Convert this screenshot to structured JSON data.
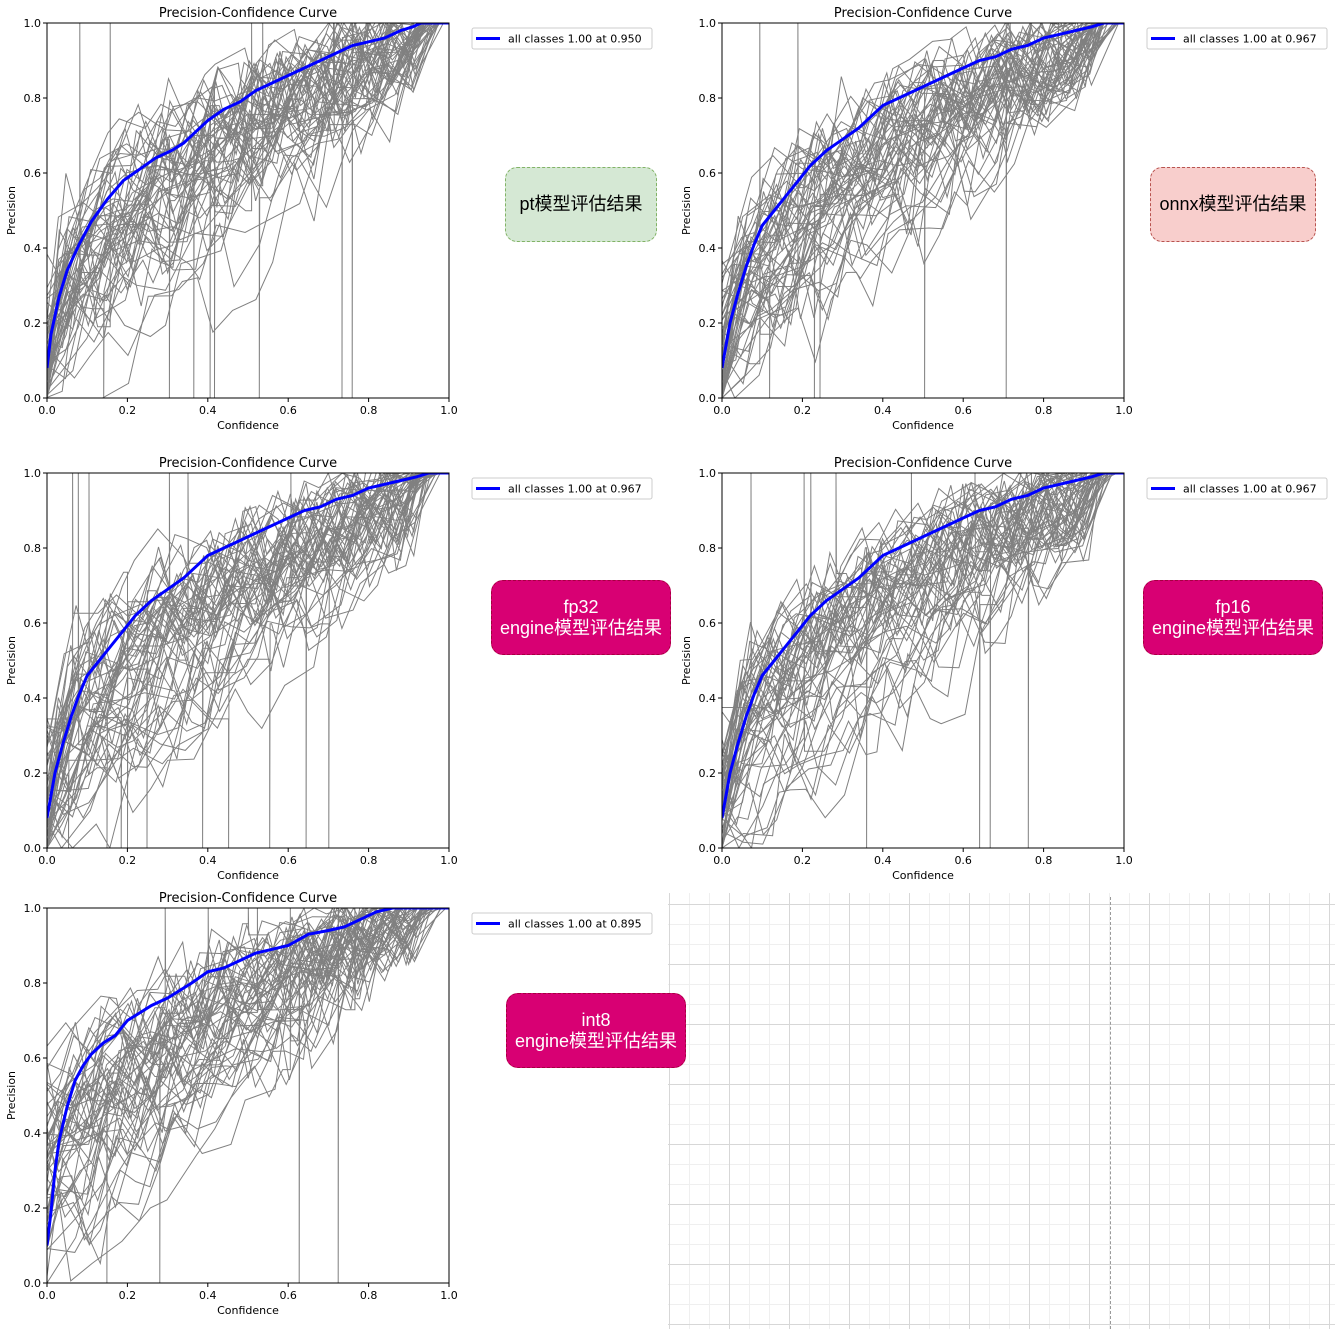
{
  "chart_data": [
    {
      "type": "line",
      "title": "Precision-Confidence Curve",
      "xlabel": "Confidence",
      "ylabel": "Precision",
      "xlim": [
        0,
        1
      ],
      "ylim": [
        0,
        1
      ],
      "xticks": [
        "0.0",
        "0.2",
        "0.4",
        "0.6",
        "0.8",
        "1.0"
      ],
      "yticks": [
        "0.0",
        "0.2",
        "0.4",
        "0.6",
        "0.8",
        "1.0"
      ],
      "grid": false,
      "legend_position": "outside-right-top",
      "legend": "all classes 1.00 at 0.950",
      "series": [
        {
          "name": "all classes 1.00 at 0.950",
          "color": "#0000ff",
          "x": [
            0.0,
            0.01,
            0.03,
            0.05,
            0.08,
            0.11,
            0.15,
            0.19,
            0.23,
            0.27,
            0.31,
            0.34,
            0.37,
            0.4,
            0.44,
            0.48,
            0.52,
            0.56,
            0.6,
            0.64,
            0.68,
            0.72,
            0.76,
            0.8,
            0.84,
            0.88,
            0.91,
            0.93,
            0.95,
            1.0
          ],
          "y": [
            0.08,
            0.17,
            0.27,
            0.34,
            0.41,
            0.47,
            0.53,
            0.58,
            0.61,
            0.64,
            0.66,
            0.68,
            0.71,
            0.74,
            0.77,
            0.79,
            0.82,
            0.84,
            0.86,
            0.88,
            0.9,
            0.92,
            0.94,
            0.95,
            0.96,
            0.98,
            0.99,
            1.0,
            1.0,
            1.0
          ]
        }
      ]
    },
    {
      "type": "line",
      "title": "Precision-Confidence Curve",
      "xlabel": "Confidence",
      "ylabel": "Precision",
      "xlim": [
        0,
        1
      ],
      "ylim": [
        0,
        1
      ],
      "xticks": [
        "0.0",
        "0.2",
        "0.4",
        "0.6",
        "0.8",
        "1.0"
      ],
      "yticks": [
        "0.0",
        "0.2",
        "0.4",
        "0.6",
        "0.8",
        "1.0"
      ],
      "grid": false,
      "legend_position": "outside-right-top",
      "legend": "all classes 1.00 at 0.967",
      "series": [
        {
          "name": "all classes 1.00 at 0.967",
          "color": "#0000ff",
          "x": [
            0.0,
            0.01,
            0.02,
            0.04,
            0.06,
            0.08,
            0.1,
            0.13,
            0.16,
            0.19,
            0.22,
            0.26,
            0.3,
            0.34,
            0.37,
            0.4,
            0.44,
            0.48,
            0.52,
            0.56,
            0.6,
            0.64,
            0.68,
            0.72,
            0.76,
            0.8,
            0.84,
            0.88,
            0.92,
            0.95,
            0.967,
            1.0
          ],
          "y": [
            0.08,
            0.14,
            0.2,
            0.28,
            0.35,
            0.41,
            0.46,
            0.5,
            0.54,
            0.58,
            0.62,
            0.66,
            0.69,
            0.72,
            0.75,
            0.78,
            0.8,
            0.82,
            0.84,
            0.86,
            0.88,
            0.9,
            0.91,
            0.93,
            0.94,
            0.96,
            0.97,
            0.98,
            0.99,
            1.0,
            1.0,
            1.0
          ]
        }
      ]
    },
    {
      "type": "line",
      "title": "Precision-Confidence Curve",
      "xlabel": "Confidence",
      "ylabel": "Precision",
      "xlim": [
        0,
        1
      ],
      "ylim": [
        0,
        1
      ],
      "xticks": [
        "0.0",
        "0.2",
        "0.4",
        "0.6",
        "0.8",
        "1.0"
      ],
      "yticks": [
        "0.0",
        "0.2",
        "0.4",
        "0.6",
        "0.8",
        "1.0"
      ],
      "grid": false,
      "legend_position": "outside-right-top",
      "legend": "all classes 1.00 at 0.967",
      "series": [
        {
          "name": "all classes 1.00 at 0.967",
          "color": "#0000ff",
          "x": [
            0.0,
            0.01,
            0.02,
            0.04,
            0.06,
            0.08,
            0.1,
            0.13,
            0.16,
            0.19,
            0.22,
            0.26,
            0.3,
            0.34,
            0.37,
            0.4,
            0.44,
            0.48,
            0.52,
            0.56,
            0.6,
            0.64,
            0.68,
            0.72,
            0.76,
            0.8,
            0.84,
            0.88,
            0.92,
            0.95,
            0.967,
            1.0
          ],
          "y": [
            0.08,
            0.14,
            0.2,
            0.28,
            0.35,
            0.41,
            0.46,
            0.5,
            0.54,
            0.58,
            0.62,
            0.66,
            0.69,
            0.72,
            0.75,
            0.78,
            0.8,
            0.82,
            0.84,
            0.86,
            0.88,
            0.9,
            0.91,
            0.93,
            0.94,
            0.96,
            0.97,
            0.98,
            0.99,
            1.0,
            1.0,
            1.0
          ]
        }
      ]
    },
    {
      "type": "line",
      "title": "Precision-Confidence Curve",
      "xlabel": "Confidence",
      "ylabel": "Precision",
      "xlim": [
        0,
        1
      ],
      "ylim": [
        0,
        1
      ],
      "xticks": [
        "0.0",
        "0.2",
        "0.4",
        "0.6",
        "0.8",
        "1.0"
      ],
      "yticks": [
        "0.0",
        "0.2",
        "0.4",
        "0.6",
        "0.8",
        "1.0"
      ],
      "grid": false,
      "legend_position": "outside-right-top",
      "legend": "all classes 1.00 at 0.967",
      "series": [
        {
          "name": "all classes 1.00 at 0.967",
          "color": "#0000ff",
          "x": [
            0.0,
            0.01,
            0.02,
            0.04,
            0.06,
            0.08,
            0.1,
            0.13,
            0.16,
            0.19,
            0.22,
            0.26,
            0.3,
            0.34,
            0.37,
            0.4,
            0.44,
            0.48,
            0.52,
            0.56,
            0.6,
            0.64,
            0.68,
            0.72,
            0.76,
            0.8,
            0.84,
            0.88,
            0.92,
            0.95,
            0.967,
            1.0
          ],
          "y": [
            0.08,
            0.14,
            0.2,
            0.28,
            0.35,
            0.41,
            0.46,
            0.5,
            0.54,
            0.58,
            0.62,
            0.66,
            0.69,
            0.72,
            0.75,
            0.78,
            0.8,
            0.82,
            0.84,
            0.86,
            0.88,
            0.9,
            0.91,
            0.93,
            0.94,
            0.96,
            0.97,
            0.98,
            0.99,
            1.0,
            1.0,
            1.0
          ]
        }
      ]
    },
    {
      "type": "line",
      "title": "Precision-Confidence Curve",
      "xlabel": "Confidence",
      "ylabel": "Precision",
      "xlim": [
        0,
        1
      ],
      "ylim": [
        0,
        1
      ],
      "xticks": [
        "0.0",
        "0.2",
        "0.4",
        "0.6",
        "0.8",
        "1.0"
      ],
      "yticks": [
        "0.0",
        "0.2",
        "0.4",
        "0.6",
        "0.8",
        "1.0"
      ],
      "grid": false,
      "legend_position": "outside-right-top",
      "legend": "all classes 1.00 at 0.895",
      "series": [
        {
          "name": "all classes 1.00 at 0.895",
          "color": "#0000ff",
          "x": [
            0.0,
            0.01,
            0.02,
            0.03,
            0.05,
            0.07,
            0.09,
            0.11,
            0.14,
            0.17,
            0.2,
            0.23,
            0.26,
            0.3,
            0.33,
            0.36,
            0.4,
            0.44,
            0.48,
            0.52,
            0.56,
            0.6,
            0.65,
            0.7,
            0.74,
            0.78,
            0.82,
            0.86,
            0.895,
            1.0
          ],
          "y": [
            0.1,
            0.19,
            0.3,
            0.38,
            0.47,
            0.54,
            0.58,
            0.61,
            0.64,
            0.66,
            0.7,
            0.72,
            0.74,
            0.76,
            0.78,
            0.8,
            0.83,
            0.84,
            0.86,
            0.88,
            0.89,
            0.9,
            0.93,
            0.94,
            0.95,
            0.97,
            0.99,
            1.0,
            1.0,
            1.0
          ]
        }
      ]
    }
  ],
  "badges": [
    {
      "text": "pt模型评估结果",
      "bg": "#d5e8d4",
      "border": "#82b366",
      "color": "#000000"
    },
    {
      "text": "onnx模型评估结果",
      "bg": "#f8cecc",
      "border": "#b85450",
      "color": "#000000"
    },
    {
      "text": "fp32\nengine模型评估结果",
      "bg": "#d80073",
      "border": "#a50040",
      "color": "#ffffff"
    },
    {
      "text": "fp16\nengine模型评估结果",
      "bg": "#d80073",
      "border": "#a50040",
      "color": "#ffffff"
    },
    {
      "text": "int8\nengine模型评估结果",
      "bg": "#d80073",
      "border": "#a50040",
      "color": "#ffffff"
    }
  ],
  "colors": {
    "class_curves": "#808080",
    "all_classes": "#0000ff"
  }
}
